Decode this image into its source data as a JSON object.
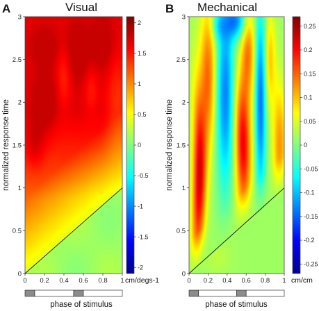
{
  "chart_data": [
    {
      "type": "heatmap",
      "panel_label": "A",
      "title": "Visual",
      "xlabel": "phase of stimulus",
      "ylabel": "normalized response time",
      "xlim": [
        0,
        1
      ],
      "ylim": [
        0,
        3
      ],
      "x_ticks": [
        "0",
        "0.2",
        "0.4",
        "0.6",
        "0.8",
        "1"
      ],
      "y_ticks": [
        "0",
        "0.5",
        "1",
        "1.5",
        "2",
        "2.5",
        "3"
      ],
      "colorbar": {
        "range": [
          -2.1,
          2.1
        ],
        "ticks": [
          "2",
          "1.5",
          "1",
          "0.5",
          "0",
          "-0.5",
          "-1",
          "-1.5",
          "-2"
        ],
        "tick_values": [
          2,
          1.5,
          1,
          0.5,
          0,
          -0.5,
          -1,
          -1.5,
          -2
        ],
        "unit": "cm/degs-1"
      },
      "diagonal_line": {
        "from": [
          0,
          0
        ],
        "to": [
          1,
          1
        ]
      },
      "stimulus_bar": [
        {
          "start": 0.0,
          "end": 0.1,
          "state": "on"
        },
        {
          "start": 0.1,
          "end": 0.5,
          "state": "off"
        },
        {
          "start": 0.5,
          "end": 0.6,
          "state": "on"
        },
        {
          "start": 0.6,
          "end": 1.0,
          "state": "off"
        }
      ],
      "field_shape": "visual"
    },
    {
      "type": "heatmap",
      "panel_label": "B",
      "title": "Mechanical",
      "xlabel": "phase of stimulus",
      "ylabel": "normalized response time",
      "xlim": [
        0,
        1
      ],
      "ylim": [
        0,
        3
      ],
      "x_ticks": [
        "0",
        "0.2",
        "0.4",
        "0.6",
        "0.8",
        "1"
      ],
      "y_ticks": [
        "0",
        "0.5",
        "1",
        "1.5",
        "2",
        "2.5",
        "3"
      ],
      "colorbar": {
        "range": [
          -0.27,
          0.27
        ],
        "ticks": [
          "0.25",
          "0.2",
          "0.15",
          "0.1",
          "0.05",
          "0",
          "-0.05",
          "-0.1",
          "-0.15",
          "-0.2",
          "-0.25"
        ],
        "tick_values": [
          0.25,
          0.2,
          0.15,
          0.1,
          0.05,
          0,
          -0.05,
          -0.1,
          -0.15,
          -0.2,
          -0.25
        ],
        "unit": "cm/cm"
      },
      "diagonal_line": {
        "from": [
          0,
          0
        ],
        "to": [
          1,
          1
        ]
      },
      "stimulus_bar": [
        {
          "start": 0.0,
          "end": 0.1,
          "state": "on"
        },
        {
          "start": 0.1,
          "end": 0.5,
          "state": "off"
        },
        {
          "start": 0.5,
          "end": 0.6,
          "state": "on"
        },
        {
          "start": 0.6,
          "end": 1.0,
          "state": "off"
        }
      ],
      "field_shape": "mechanical"
    }
  ]
}
